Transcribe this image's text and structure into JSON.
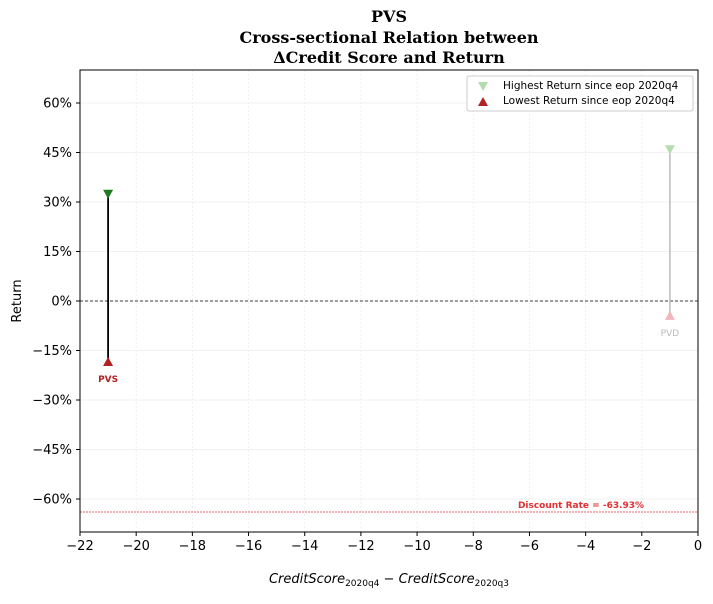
{
  "chart_data": {
    "type": "scatter",
    "title_lines": [
      "PVS",
      "Cross-sectional Relation between",
      "ΔCredit Score and Return"
    ],
    "xlabel": "CreditScore",
    "xlabel_sub1": "2020q4",
    "xlabel_mid": " − ",
    "xlabel_sub2": "2020q3",
    "ylabel": "Return",
    "xlim": [
      -22,
      0
    ],
    "ylim": [
      -0.7,
      0.7
    ],
    "x_ticks": [
      -22,
      -20,
      -18,
      -16,
      -14,
      -12,
      -10,
      -8,
      -6,
      -4,
      -2,
      0
    ],
    "x_tick_labels": [
      "−22",
      "−20",
      "−18",
      "−16",
      "−14",
      "−12",
      "−10",
      "−8",
      "−6",
      "−4",
      "−2",
      "0"
    ],
    "y_ticks": [
      0.6,
      0.45,
      0.3,
      0.15,
      0,
      -0.15,
      -0.3,
      -0.45,
      -0.6
    ],
    "y_tick_labels": [
      "60%",
      "45%",
      "30%",
      "15%",
      "0%",
      "−15%",
      "−30%",
      "−45%",
      "−60%"
    ],
    "grid": true,
    "legend_position": "top-right",
    "legend": [
      {
        "label": "Highest Return since eop 2020q4",
        "marker": "triangle-down",
        "color": "#b5dcae"
      },
      {
        "label": "Lowest Return since eop 2020q4",
        "marker": "triangle-up",
        "color": "#b22222"
      }
    ],
    "series": [
      {
        "name": "PVS",
        "x": -21,
        "high": 0.325,
        "low": -0.185,
        "highlight": true
      },
      {
        "name": "PVD",
        "x": -1,
        "high": 0.46,
        "low": -0.045,
        "highlight": false
      }
    ],
    "discount_rate": {
      "value": -0.6393,
      "label": "Discount Rate = -63.93%"
    },
    "colors": {
      "high_marker": "#1f7a1f",
      "high_marker_faded": "#b5dcae",
      "low_marker": "#b22222",
      "low_marker_faded": "#f0b5bd",
      "line": "#000000",
      "line_faded": "#bbbbbb",
      "discount_line": "#e03030",
      "label_faded": "#bbbbbb"
    }
  }
}
